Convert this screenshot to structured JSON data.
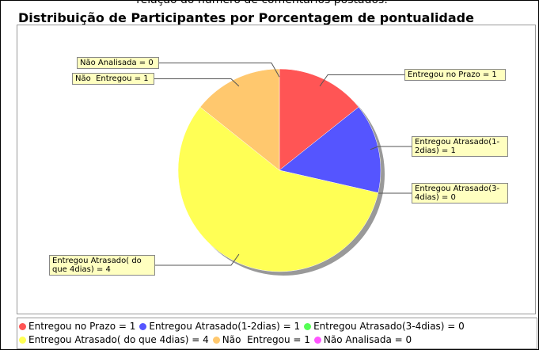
{
  "caption": "relação do número de comentários postados.",
  "chart_data": {
    "type": "pie",
    "title": "Distribuição de Participantes por Porcentagem de pontualidade",
    "categories": [
      "Entregou no Prazo = 1",
      "Entregou Atrasado(1-2dias) = 1",
      "Entregou Atrasado(3-4dias) = 0",
      "Entregou Atrasado( do que 4dias) = 4",
      "Não  Entregou = 1",
      "Não Analisada = 0"
    ],
    "values": [
      1,
      1,
      0,
      4,
      1,
      0
    ],
    "colors": [
      "#ff5555",
      "#5555ff",
      "#55ff55",
      "#ffff55",
      "#ffc86e",
      "#ff55ff"
    ],
    "legend": "bottom"
  }
}
